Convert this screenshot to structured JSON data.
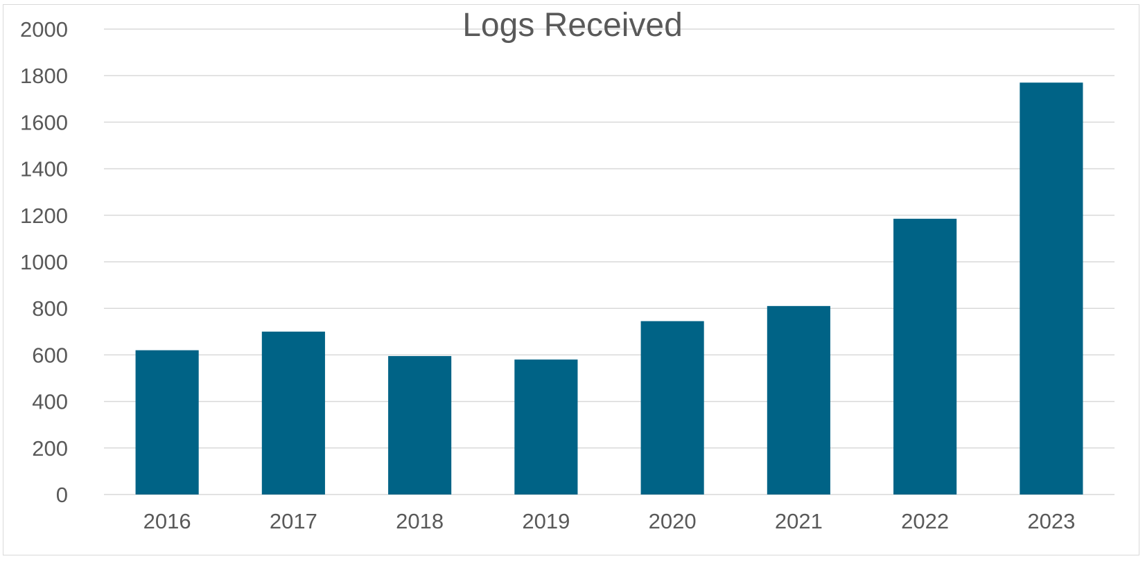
{
  "chart_data": {
    "type": "bar",
    "title": "Logs Received",
    "xlabel": "",
    "ylabel": "",
    "categories": [
      "2016",
      "2017",
      "2018",
      "2019",
      "2020",
      "2021",
      "2022",
      "2023"
    ],
    "values": [
      620,
      700,
      595,
      580,
      745,
      810,
      1185,
      1770
    ],
    "ylim": [
      0,
      2000
    ],
    "yticks": [
      0,
      200,
      400,
      600,
      800,
      1000,
      1200,
      1400,
      1600,
      1800,
      2000
    ],
    "grid": true,
    "legend": "none",
    "colors": {
      "bar": "#006386",
      "grid": "#d9d9d9",
      "text": "#595959"
    }
  }
}
